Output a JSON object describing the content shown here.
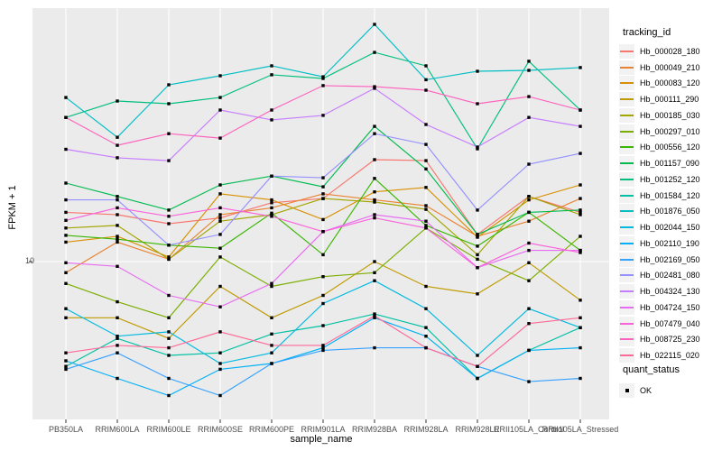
{
  "figure": {
    "y_axis": {
      "label": "FPKM + 1",
      "tick_labels": [
        "10"
      ]
    },
    "x_axis": {
      "label": "sample_name"
    },
    "legend": {
      "title": "tracking_id",
      "quant_title": "quant_status",
      "quant_items": [
        {
          "label": "OK",
          "marker": "black-square"
        }
      ]
    },
    "colors": {
      "panel_background": "#EBEBEB",
      "gridline": "#FFFFFF",
      "point_marker": "#000000",
      "axis_text": "#4D4D4D",
      "legend_key_background": "#F2F2F2"
    }
  },
  "chart_data": {
    "type": "line",
    "title": "",
    "xlabel": "sample_name",
    "ylabel": "FPKM + 1",
    "y_scale": "log10",
    "y_ticks": [
      10
    ],
    "ylim": [
      2.6,
      86
    ],
    "grid": "white vertical gridline per category, horizontal gridline at y=10",
    "legend_position": "right",
    "point_marker": "black-square",
    "categories": [
      "PB350LA",
      "RRIM600LA",
      "RRIM600LE",
      "RRIM600SE",
      "RRIM600PE",
      "RRIM901LA",
      "RRIM928BA",
      "RRIM928LA",
      "RRIM928LE",
      "RRII105LA_Control",
      "RRII105LA_Stressed"
    ],
    "series": [
      {
        "name": "Hb_000028_180",
        "color": "#F8766D",
        "values": [
          15.2,
          14.9,
          13.8,
          14.5,
          16.5,
          17.1,
          23.8,
          23.6,
          12.6,
          17.4,
          15.2
        ]
      },
      {
        "name": "Hb_000049_210",
        "color": "#EA8331",
        "values": [
          9.1,
          11.8,
          10.2,
          14.9,
          15.8,
          17.8,
          16.9,
          16.1,
          12.4,
          14.1,
          17.1
        ]
      },
      {
        "name": "Hb_000083_120",
        "color": "#D89000",
        "values": [
          11.8,
          12.4,
          10.4,
          17.8,
          16.9,
          14.3,
          18.1,
          18.8,
          12.3,
          16.9,
          19.2
        ]
      },
      {
        "name": "Hb_000111_290",
        "color": "#C09B00",
        "values": [
          6.2,
          6.2,
          5.2,
          8.1,
          6.2,
          7.5,
          10.0,
          8.1,
          7.6,
          9.9,
          7.2
        ]
      },
      {
        "name": "Hb_000185_030",
        "color": "#A3A500",
        "values": [
          13.3,
          13.6,
          10.2,
          14.1,
          14.9,
          17.1,
          16.6,
          15.6,
          10.6,
          17.4,
          14.9
        ]
      },
      {
        "name": "Hb_000297_010",
        "color": "#7CAE00",
        "values": [
          8.3,
          7.1,
          6.2,
          10.4,
          8.1,
          8.8,
          9.1,
          13.3,
          10.2,
          8.5,
          12.4
        ]
      },
      {
        "name": "Hb_000556_120",
        "color": "#39B600",
        "values": [
          12.5,
          12.1,
          11.5,
          11.2,
          15.1,
          10.6,
          20.3,
          13.6,
          11.4,
          15.2,
          11.0
        ]
      },
      {
        "name": "Hb_001157_090",
        "color": "#00BB4E",
        "values": [
          19.5,
          17.4,
          15.5,
          19.2,
          20.7,
          18.9,
          31.6,
          22.0,
          12.6,
          15.2,
          15.5
        ]
      },
      {
        "name": "Hb_001252_120",
        "color": "#00BF7D",
        "values": [
          34.1,
          39.2,
          38.3,
          40.4,
          49.0,
          47.5,
          59.3,
          52.9,
          26.1,
          55.0,
          36.3
        ]
      },
      {
        "name": "Hb_001584_120",
        "color": "#00C1A3",
        "values": [
          4.1,
          5.2,
          4.5,
          4.6,
          5.4,
          5.8,
          6.4,
          5.7,
          3.7,
          4.7,
          5.7
        ]
      },
      {
        "name": "Hb_001876_050",
        "color": "#00BFC4",
        "values": [
          40.4,
          28.8,
          45.0,
          48.6,
          52.9,
          48.2,
          75.3,
          47.0,
          50.5,
          50.9,
          52.1
        ]
      },
      {
        "name": "Hb_002044_150",
        "color": "#00BAE0",
        "values": [
          6.7,
          5.3,
          5.5,
          4.2,
          4.6,
          7.0,
          8.5,
          6.7,
          4.5,
          6.7,
          5.7
        ]
      },
      {
        "name": "Hb_002110_190",
        "color": "#00B0F6",
        "values": [
          4.3,
          3.7,
          3.2,
          4.0,
          4.2,
          4.8,
          6.2,
          5.3,
          3.7,
          4.7,
          4.8
        ]
      },
      {
        "name": "Hb_002169_050",
        "color": "#35A2FF",
        "values": [
          4.0,
          4.6,
          3.7,
          3.2,
          4.2,
          4.7,
          4.8,
          4.8,
          4.1,
          3.6,
          3.7
        ]
      },
      {
        "name": "Hb_002481_080",
        "color": "#9590FF",
        "values": [
          16.9,
          16.9,
          11.5,
          12.6,
          20.7,
          20.4,
          29.7,
          27.1,
          15.5,
          22.9,
          25.1
        ]
      },
      {
        "name": "Hb_004324_130",
        "color": "#C77CFF",
        "values": [
          26.0,
          24.2,
          23.6,
          36.3,
          33.4,
          34.7,
          43.7,
          32.1,
          26.5,
          34.1,
          31.6
        ]
      },
      {
        "name": "Hb_004724_150",
        "color": "#E76BF3",
        "values": [
          9.9,
          9.6,
          7.5,
          6.8,
          8.3,
          12.9,
          14.9,
          14.1,
          9.5,
          11.0,
          11.0
        ]
      },
      {
        "name": "Hb_007479_040",
        "color": "#FA62DB",
        "values": [
          14.2,
          15.8,
          14.7,
          15.8,
          14.7,
          12.9,
          14.5,
          13.3,
          9.5,
          11.7,
          10.8
        ]
      },
      {
        "name": "Hb_008725_230",
        "color": "#FF62BC",
        "values": [
          34.1,
          26.9,
          29.7,
          28.6,
          36.3,
          44.7,
          44.3,
          43.0,
          38.3,
          40.7,
          36.3
        ]
      },
      {
        "name": "Hb_022115_020",
        "color": "#FF6A98",
        "values": [
          4.6,
          4.9,
          4.8,
          5.5,
          4.9,
          4.9,
          6.3,
          4.8,
          4.1,
          5.9,
          6.2
        ]
      }
    ]
  }
}
